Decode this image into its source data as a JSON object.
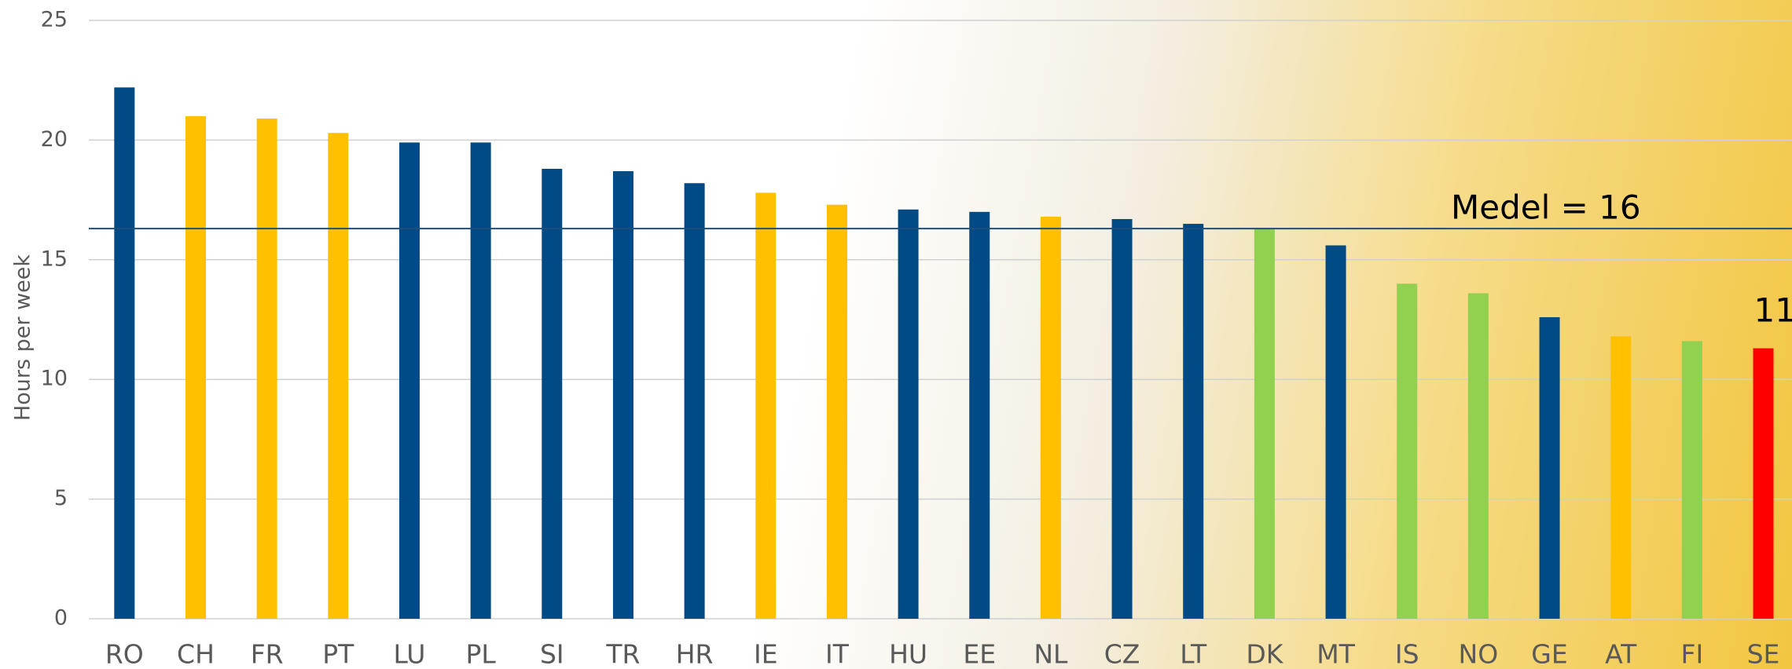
{
  "chart_data": {
    "type": "bar",
    "y_label": "Hours per week",
    "categories": [
      "RO",
      "CH",
      "FR",
      "PT",
      "LU",
      "PL",
      "SI",
      "TR",
      "HR",
      "IE",
      "IT",
      "HU",
      "EE",
      "NL",
      "CZ",
      "LT",
      "DK",
      "MT",
      "IS",
      "NO",
      "GE",
      "AT",
      "FI",
      "SE"
    ],
    "values": [
      22.2,
      21.0,
      20.9,
      20.3,
      19.9,
      19.9,
      18.8,
      18.7,
      18.2,
      17.8,
      17.3,
      17.1,
      17.0,
      16.8,
      16.7,
      16.5,
      16.3,
      15.6,
      14.0,
      13.6,
      12.6,
      11.8,
      11.6,
      11.3
    ],
    "colors": [
      "#004a86",
      "#ffc000",
      "#ffc000",
      "#ffc000",
      "#004a86",
      "#004a86",
      "#004a86",
      "#004a86",
      "#004a86",
      "#ffc000",
      "#ffc000",
      "#004a86",
      "#004a86",
      "#ffc000",
      "#004a86",
      "#004a86",
      "#92d050",
      "#004a86",
      "#92d050",
      "#92d050",
      "#004a86",
      "#ffc000",
      "#92d050",
      "#ff0000"
    ],
    "ylim": [
      0,
      25
    ],
    "yticks": [
      0,
      5,
      10,
      15,
      20,
      25
    ],
    "grid": true,
    "median_line": {
      "value": 16.3,
      "label": "Medel = 16",
      "color": "#1f4e79"
    },
    "annotation": "11"
  }
}
